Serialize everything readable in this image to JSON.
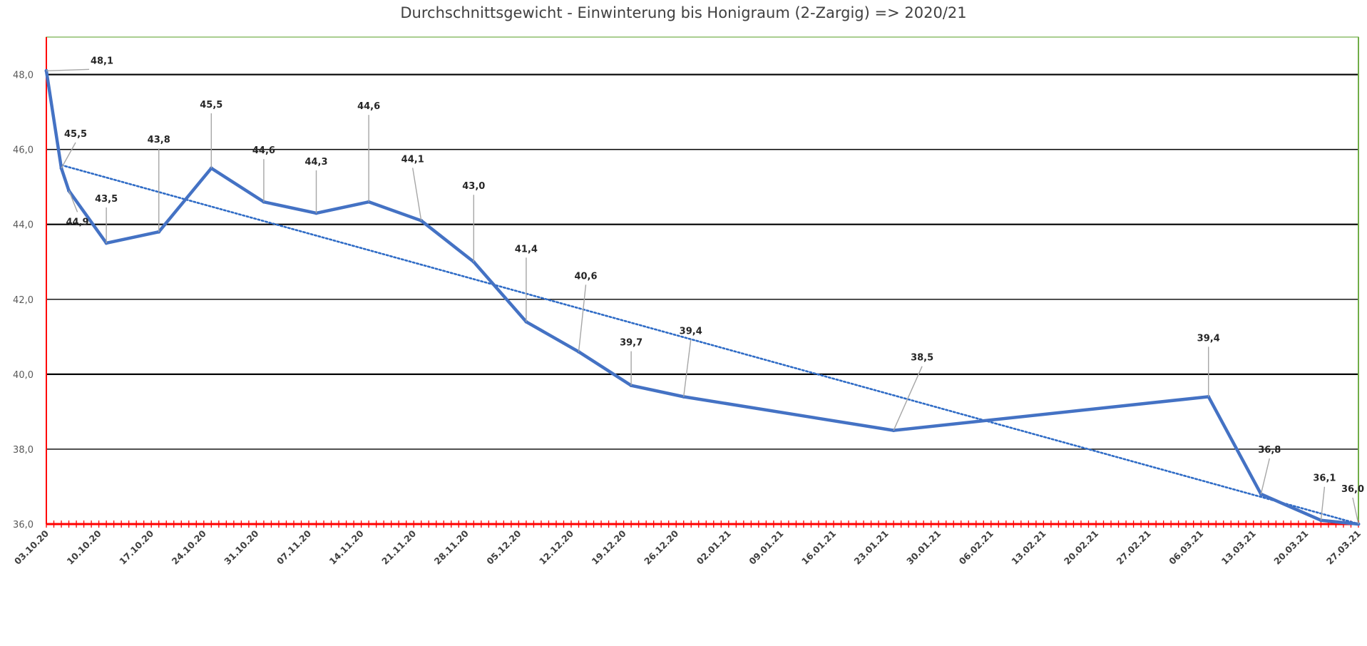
{
  "chart_data": {
    "type": "line",
    "title": "Durchschnittsgewicht - Einwinterung bis Honigraum (2-Zargig) => 2020/21",
    "xlabel": "",
    "ylabel": "",
    "ylim": [
      36.0,
      49.0
    ],
    "yticks": [
      "36,0",
      "38,0",
      "40,0",
      "42,0",
      "44,0",
      "46,0",
      "48,0"
    ],
    "ytick_values": [
      36,
      38,
      40,
      42,
      44,
      46,
      48
    ],
    "xlim": [
      "2020-10-03",
      "2021-03-27"
    ],
    "xtick_labels": [
      "03.10.20",
      "10.10.20",
      "17.10.20",
      "24.10.20",
      "31.10.20",
      "07.11.20",
      "14.11.20",
      "21.11.20",
      "28.11.20",
      "05.12.20",
      "12.12.20",
      "19.12.20",
      "26.12.20",
      "02.01.21",
      "09.01.21",
      "16.01.21",
      "23.01.21",
      "30.01.21",
      "06.02.21",
      "13.02.21",
      "20.02.21",
      "27.02.21",
      "06.03.21",
      "13.03.21",
      "20.03.21",
      "27.03.21"
    ],
    "grid": true,
    "legend": "none",
    "colors": {
      "line": "#4472C4",
      "trend": "#2E6BC6",
      "grid": "#000000",
      "left_axis": "#FF0000",
      "x_axis": "#FF0000",
      "right_axis": "#70AD47"
    },
    "series": [
      {
        "x": [
          "2020-10-03",
          "2020-10-05",
          "2020-10-06",
          "2020-10-11",
          "2020-10-18",
          "2020-10-25",
          "2020-11-01",
          "2020-11-08",
          "2020-11-15",
          "2020-11-22",
          "2020-11-29",
          "2020-12-06",
          "2020-12-13",
          "2020-12-20",
          "2020-12-27",
          "2021-01-24",
          "2021-03-07",
          "2021-03-14",
          "2021-03-22",
          "2021-03-27"
        ],
        "values": [
          48.1,
          45.5,
          44.9,
          43.5,
          43.8,
          45.5,
          44.6,
          44.3,
          44.6,
          44.1,
          43.0,
          41.4,
          40.6,
          39.7,
          39.4,
          38.5,
          39.4,
          36.8,
          36.1,
          36.0
        ],
        "labels": [
          "48,1",
          "45,5",
          "44,9",
          "43,5",
          "43,8",
          "45,5",
          "44,6",
          "44,3",
          "44,6",
          "44,1",
          "43,0",
          "41,4",
          "40,6",
          "39,7",
          "39,4",
          "38,5",
          "39,4",
          "36,8",
          "36,1",
          "36,0"
        ]
      }
    ],
    "trendline": {
      "type": "linear",
      "style": "dotted"
    }
  }
}
